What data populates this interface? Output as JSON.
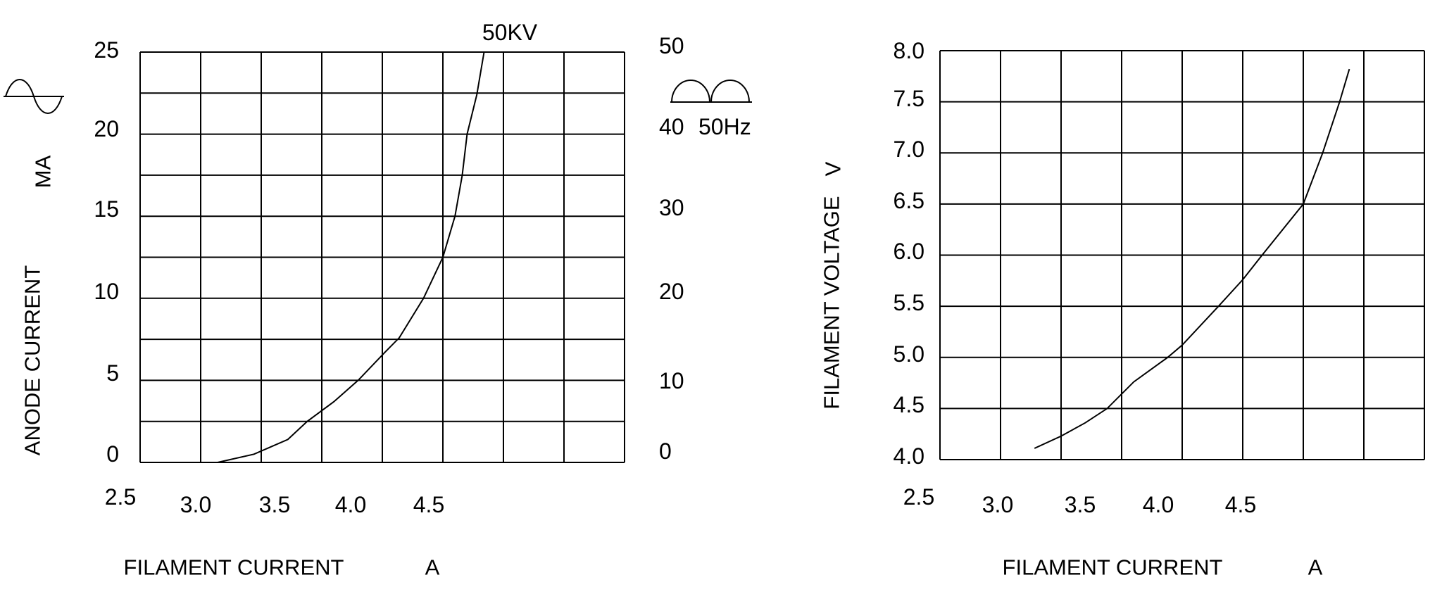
{
  "page": {
    "background": "#ffffff",
    "line_color": "#000000"
  },
  "chart_data": [
    {
      "id": "anode",
      "type": "line",
      "title": "",
      "xlabel": "FILAMENT CURRENT",
      "x_unit": "A",
      "ylabel": "ANODE CURRENT",
      "y_unit": "MA",
      "annotation": "50KV",
      "y2_annotation": "50Hz",
      "left_axis_icon": "sine-wave",
      "right_axis_icon": "full-wave-rectified",
      "x_tick_labels": [
        "2.5",
        "3.0",
        "3.5",
        "4.0",
        "4.5"
      ],
      "y_tick_labels": [
        "25",
        "20",
        "15",
        "10",
        "5",
        "0"
      ],
      "y2_tick_labels": [
        "50",
        "40",
        "30",
        "20",
        "10",
        "0"
      ],
      "xlim": [
        2.5,
        4.5
      ],
      "ylim": [
        0,
        25
      ],
      "y2lim": [
        0,
        50
      ],
      "grid": "on",
      "series": [
        {
          "name": "anode current vs filament current at 50KV",
          "points": [
            [
              2.82,
              0
            ],
            [
              2.97,
              0.5
            ],
            [
              3.11,
              1.4
            ],
            [
              3.19,
              2.5
            ],
            [
              3.3,
              3.7
            ],
            [
              3.4,
              5.0
            ],
            [
              3.51,
              6.7
            ],
            [
              3.57,
              7.6
            ],
            [
              3.67,
              10.0
            ],
            [
              3.75,
              12.5
            ],
            [
              3.8,
              15.0
            ],
            [
              3.83,
              17.5
            ],
            [
              3.85,
              20.0
            ],
            [
              3.89,
              22.4
            ],
            [
              3.92,
              25.0
            ]
          ]
        }
      ]
    },
    {
      "id": "voltage",
      "type": "line",
      "title": "",
      "xlabel": "FILAMENT CURRENT",
      "x_unit": "A",
      "ylabel": "FILAMENT VOLTAGE",
      "y_unit": "V",
      "x_tick_labels": [
        "2.5",
        "3.0",
        "3.5",
        "4.0",
        "4.5"
      ],
      "y_tick_labels": [
        "8.0",
        "7.5",
        "7.0",
        "6.5",
        "6.0",
        "5.5",
        "5.0",
        "4.5",
        "4.0"
      ],
      "xlim": [
        2.5,
        4.5
      ],
      "ylim": [
        4.0,
        8.0
      ],
      "grid": "on",
      "series": [
        {
          "name": "filament voltage vs filament current",
          "points": [
            [
              2.89,
              4.11
            ],
            [
              3.0,
              4.23
            ],
            [
              3.1,
              4.36
            ],
            [
              3.19,
              4.5
            ],
            [
              3.3,
              4.76
            ],
            [
              3.44,
              5.0
            ],
            [
              3.5,
              5.12
            ],
            [
              3.65,
              5.5
            ],
            [
              3.75,
              5.76
            ],
            [
              3.83,
              6.0
            ],
            [
              4.0,
              6.5
            ],
            [
              4.08,
              7.0
            ],
            [
              4.15,
              7.5
            ],
            [
              4.19,
              7.82
            ]
          ]
        }
      ]
    }
  ]
}
